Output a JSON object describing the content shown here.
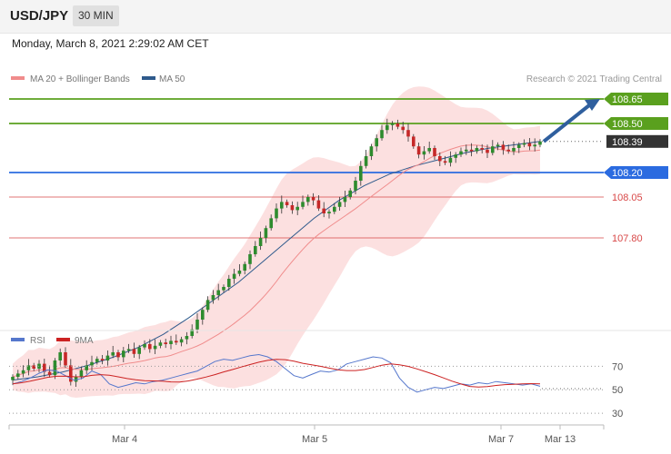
{
  "header": {
    "symbol": "USD/JPY",
    "timeframe": "30 MIN",
    "datetime": "Monday, March 8, 2021 2:29:02 AM CET"
  },
  "legend": {
    "ma20": {
      "label": "MA 20 + Bollinger Bands",
      "color": "#f08c8c"
    },
    "ma50": {
      "label": "MA 50",
      "color": "#2f5a8c"
    },
    "credit": "Research © 2021 Trading Central"
  },
  "rsi_legend": {
    "rsi": {
      "label": "RSI",
      "color": "#5577cc"
    },
    "ma9": {
      "label": "9MA",
      "color": "#cc2222"
    }
  },
  "colors": {
    "resistance": "#5aa01e",
    "support_blue": "#2b6be0",
    "support_red": "#d84848",
    "current": "#333333",
    "arrow": "#2f5f9e",
    "band": "#fbdada"
  },
  "chart_data": {
    "type": "candlestick",
    "x_tick_labels": [
      "Mar 4",
      "Mar 5",
      "Mar 7",
      "Mar 13"
    ],
    "y_range": [
      107.3,
      108.7
    ],
    "levels": [
      {
        "value": 108.65,
        "label": "108.65",
        "kind": "resistance"
      },
      {
        "value": 108.5,
        "label": "108.50",
        "kind": "resistance"
      },
      {
        "value": 108.39,
        "label": "108.39",
        "kind": "current"
      },
      {
        "value": 108.2,
        "label": "108.20",
        "kind": "support_blue"
      },
      {
        "value": 108.05,
        "label": "108.05",
        "kind": "support_red"
      },
      {
        "value": 107.8,
        "label": "107.80",
        "kind": "support_red"
      }
    ],
    "close_series": [
      106.95,
      106.97,
      106.99,
      107.02,
      107.0,
      107.03,
      106.98,
      106.96,
      107.05,
      107.1,
      107.02,
      106.92,
      106.95,
      106.99,
      107.02,
      107.04,
      107.06,
      107.05,
      107.08,
      107.1,
      107.07,
      107.11,
      107.12,
      107.09,
      107.13,
      107.15,
      107.12,
      107.14,
      107.16,
      107.15,
      107.17,
      107.16,
      107.18,
      107.2,
      107.24,
      107.3,
      107.36,
      107.42,
      107.45,
      107.48,
      107.5,
      107.55,
      107.58,
      107.6,
      107.64,
      107.7,
      107.75,
      107.8,
      107.86,
      107.92,
      107.98,
      108.02,
      108.0,
      107.97,
      107.99,
      108.02,
      108.05,
      108.03,
      107.98,
      107.95,
      107.96,
      107.99,
      108.02,
      108.05,
      108.09,
      108.15,
      108.24,
      108.3,
      108.36,
      108.41,
      108.46,
      108.49,
      108.5,
      108.48,
      108.46,
      108.42,
      108.36,
      108.31,
      108.33,
      108.35,
      108.3,
      108.27,
      108.26,
      108.29,
      108.31,
      108.33,
      108.34,
      108.33,
      108.35,
      108.34,
      108.32,
      108.36,
      108.37,
      108.34,
      108.33,
      108.35,
      108.37,
      108.38,
      108.36,
      108.37,
      108.39
    ],
    "ma50_series": [
      106.93,
      106.95,
      106.98,
      107.02,
      107.07,
      107.13,
      107.21,
      107.31,
      107.42,
      107.53,
      107.66,
      107.79,
      107.92,
      108.03,
      108.12,
      108.19,
      108.24,
      108.28,
      108.32,
      108.35,
      108.37,
      108.39
    ],
    "rsi_range": [
      20,
      85
    ],
    "rsi_levels": [
      70,
      50,
      30
    ],
    "rsi_series": [
      55,
      57,
      60,
      64,
      67,
      66,
      62,
      58,
      60,
      66,
      63,
      55,
      52,
      54,
      56,
      55,
      57,
      58,
      60,
      62,
      64,
      66,
      70,
      74,
      76,
      75,
      77,
      79,
      80,
      78,
      74,
      68,
      62,
      60,
      63,
      66,
      65,
      67,
      72,
      74,
      76,
      78,
      77,
      73,
      60,
      52,
      48,
      50,
      52,
      51,
      53,
      55,
      54,
      56,
      55,
      57,
      56,
      55,
      54,
      55,
      53
    ]
  }
}
